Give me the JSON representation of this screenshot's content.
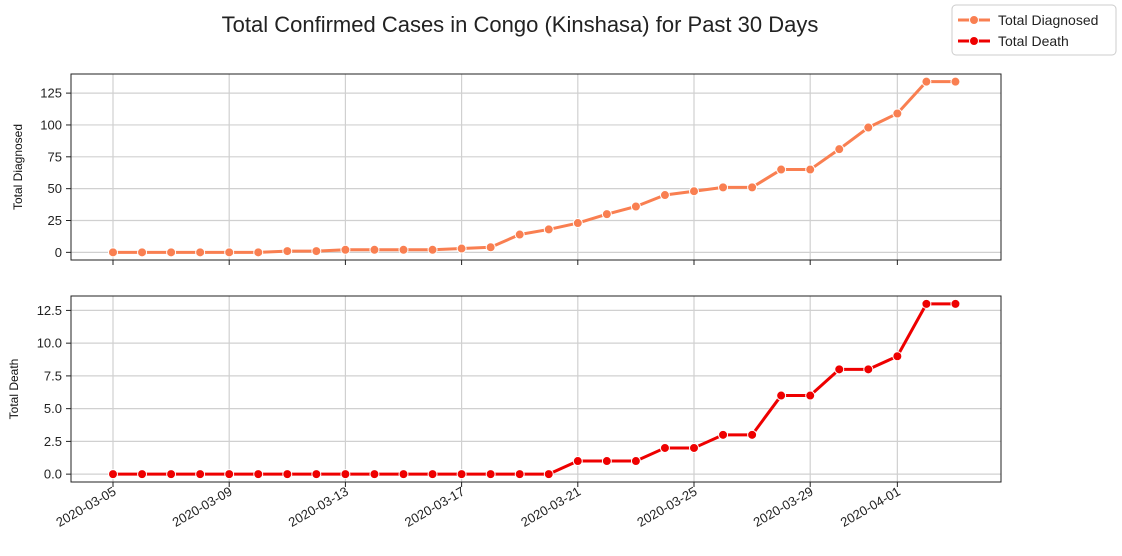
{
  "chart_data": {
    "type": "line",
    "title": "Total Confirmed Cases in Congo (Kinshasa) for Past 30 Days",
    "x": [
      "2020-03-05",
      "2020-03-06",
      "2020-03-07",
      "2020-03-08",
      "2020-03-09",
      "2020-03-10",
      "2020-03-11",
      "2020-03-12",
      "2020-03-13",
      "2020-03-14",
      "2020-03-15",
      "2020-03-16",
      "2020-03-17",
      "2020-03-18",
      "2020-03-19",
      "2020-03-20",
      "2020-03-21",
      "2020-03-22",
      "2020-03-23",
      "2020-03-24",
      "2020-03-25",
      "2020-03-26",
      "2020-03-27",
      "2020-03-28",
      "2020-03-29",
      "2020-03-30",
      "2020-03-31",
      "2020-04-01",
      "2020-04-02",
      "2020-04-03"
    ],
    "xticks": [
      "2020-03-05",
      "2020-03-09",
      "2020-03-13",
      "2020-03-17",
      "2020-03-21",
      "2020-03-25",
      "2020-03-29",
      "2020-04-01"
    ],
    "legend": {
      "placement": "top-right"
    },
    "grid": true,
    "panels": [
      {
        "series_name": "Total Diagnosed",
        "ylabel": "Total Diagnosed",
        "color": "#f97f51",
        "ylim": [
          -6,
          140
        ],
        "yticks": [
          0,
          25,
          50,
          75,
          100,
          125
        ],
        "ytick_labels": [
          "0",
          "25",
          "50",
          "75",
          "100",
          "125"
        ],
        "values": [
          0,
          0,
          0,
          0,
          0,
          0,
          1,
          1,
          2,
          2,
          2,
          2,
          3,
          4,
          14,
          18,
          23,
          30,
          36,
          45,
          48,
          51,
          51,
          65,
          65,
          81,
          98,
          109,
          134,
          134
        ]
      },
      {
        "series_name": "Total Death",
        "ylabel": "Total Death",
        "color": "#ee0000",
        "ylim": [
          -0.6,
          13.6
        ],
        "yticks": [
          0,
          2.5,
          5,
          7.5,
          10,
          12.5
        ],
        "ytick_labels": [
          "0.0",
          "2.5",
          "5.0",
          "7.5",
          "10.0",
          "12.5"
        ],
        "values": [
          0,
          0,
          0,
          0,
          0,
          0,
          0,
          0,
          0,
          0,
          0,
          0,
          0,
          0,
          0,
          0,
          1,
          1,
          1,
          2,
          2,
          3,
          3,
          6,
          6,
          8,
          8,
          9,
          13,
          13
        ]
      }
    ]
  }
}
